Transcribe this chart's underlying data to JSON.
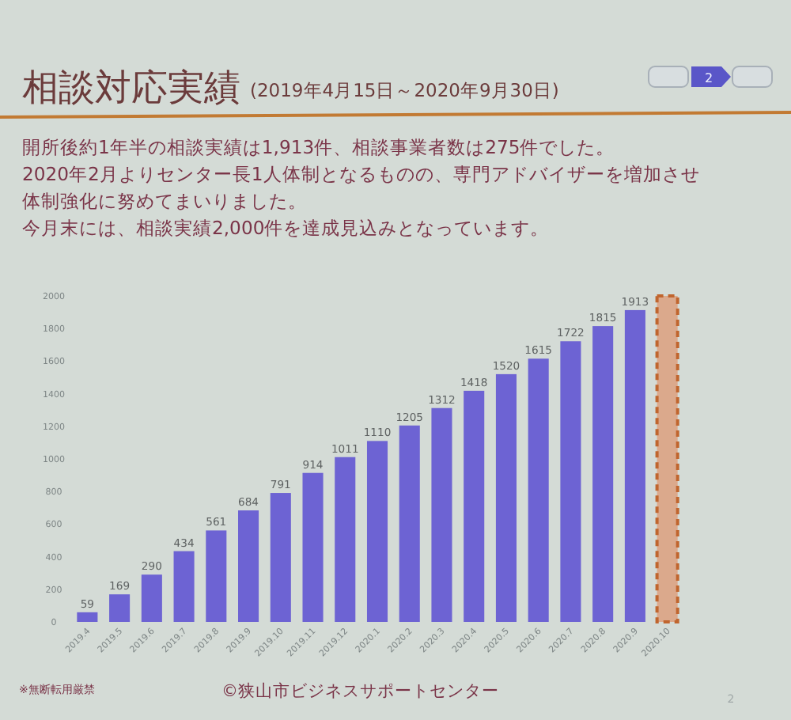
{
  "chart_data": {
    "type": "bar",
    "title": "相談対応実績",
    "subtitle": "(2019年4月15日～2020年9月30日)",
    "annotations": [
      "開所後約1年半の相談実績は1,913件、相談事業者数は275件でした。",
      "2020年2月よりセンター長1人体制となるものの、専門アドバイザーを増加させ",
      "体制強化に努めてまいりました。",
      "今月末には、相談実績2,000件を達成見込みとなっています。",
      "※無断転用厳禁",
      "©狭山市ビジネスサポートセンター",
      "2",
      "2"
    ],
    "categories": [
      "2019.4",
      "2019.5",
      "2019.6",
      "2019.7",
      "2019.8",
      "2019.9",
      "2019.10",
      "2019.11",
      "2019.12",
      "2020.1",
      "2020.2",
      "2020.3",
      "2020.4",
      "2020.5",
      "2020.6",
      "2020.7",
      "2020.8",
      "2020.9",
      "2020.10"
    ],
    "stacked": true,
    "series": [
      {
        "color": "#6d63d3",
        "values": [
          59,
          169,
          290,
          434,
          561,
          684,
          791,
          914,
          1011,
          1110,
          1205,
          1312,
          1418,
          1520,
          1615,
          1722,
          1815,
          1913,
          null
        ],
        "value_labels": [
          "59",
          "169",
          "290",
          "434",
          "561",
          "684",
          "791",
          "914",
          "1011",
          "1110",
          "1205",
          "1312",
          "1418",
          "1520",
          "1615",
          "1722",
          "1815",
          "1913",
          null
        ]
      },
      {
        "color": "#dba98c",
        "line_style": "dashed",
        "values": [
          null,
          null,
          null,
          null,
          null,
          null,
          null,
          null,
          null,
          null,
          null,
          null,
          null,
          null,
          null,
          null,
          null,
          null,
          2000
        ]
      }
    ],
    "ylim": [
      0,
      2000
    ],
    "yticks": [
      0,
      200,
      400,
      600,
      800,
      1000,
      1200,
      1400,
      1600,
      1800,
      2000
    ]
  }
}
